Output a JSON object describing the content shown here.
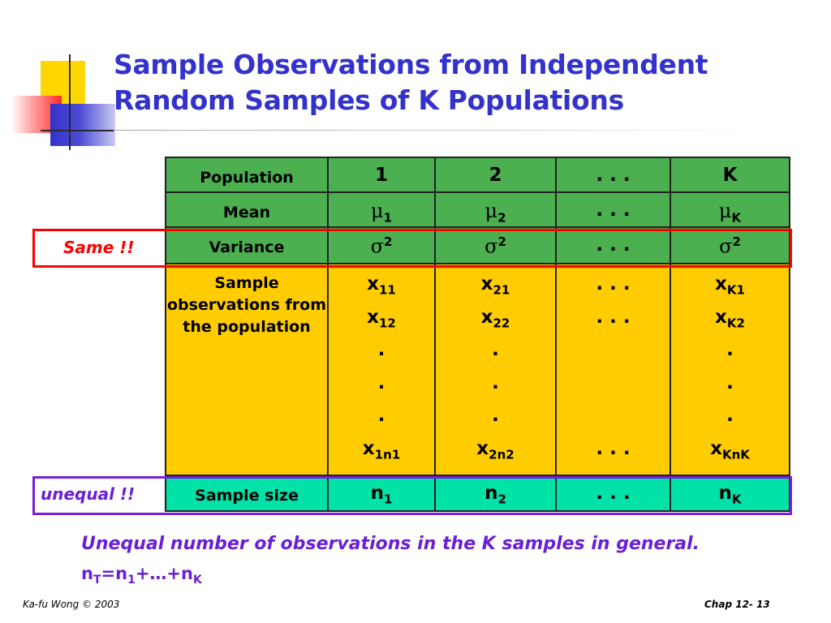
{
  "title": {
    "line1": "Sample Observations from Independent",
    "line2": "Random Samples of K Populations"
  },
  "table": {
    "headers": [
      "Population",
      "1",
      "2",
      ". . .",
      "K"
    ],
    "mean": {
      "label": "Mean",
      "cells": [
        {
          "sym": "μ",
          "sub": "1"
        },
        {
          "sym": "μ",
          "sub": "2"
        },
        {
          "text": ". . ."
        },
        {
          "sym": "μ",
          "sub": "K"
        }
      ]
    },
    "variance": {
      "label": "Variance",
      "cells": [
        {
          "sym": "σ",
          "sup": "2"
        },
        {
          "sym": "σ",
          "sup": "2"
        },
        {
          "text": ". . ."
        },
        {
          "sym": "σ",
          "sup": "2"
        }
      ]
    },
    "observations": {
      "label": "Sample observations from the population",
      "col1": [
        "x",
        "11",
        "x",
        "12",
        ".",
        ".",
        ".",
        "x",
        "1n1"
      ],
      "col2": [
        "x",
        "21",
        "x",
        "22",
        ".",
        ".",
        ".",
        "x",
        "2n2"
      ],
      "col3": [
        ". . .",
        ". . .",
        ". . ."
      ],
      "colK": [
        "x",
        "K1",
        "x",
        "K2",
        ".",
        ".",
        ".",
        "x",
        "KnK"
      ]
    },
    "sample_size": {
      "label": "Sample size",
      "cells": [
        {
          "sym": "n",
          "sub": "1"
        },
        {
          "sym": "n",
          "sub": "2"
        },
        {
          "text": ". . ."
        },
        {
          "sym": "n",
          "sub": "K"
        }
      ]
    }
  },
  "notes": {
    "same": "Same !!",
    "unequal": "unequal !!"
  },
  "bottom": {
    "text": "Unequal number of observations in the K samples in general.",
    "formula": {
      "n1": "n",
      "sub_t": "T",
      "eq": "=n",
      "sub_1": "1",
      "mid": "+…+n",
      "sub_k": "K"
    }
  },
  "footer": {
    "left": "Ka-fu Wong © 2003",
    "right": "Chap 12- 13"
  },
  "colors": {
    "title": "#3333cc",
    "header_green": "#4caf50",
    "body_yellow": "#ffcc00",
    "size_aqua": "#00e2a8",
    "same_red": "#ff0000",
    "unequal_purple": "#6a1fd6"
  }
}
